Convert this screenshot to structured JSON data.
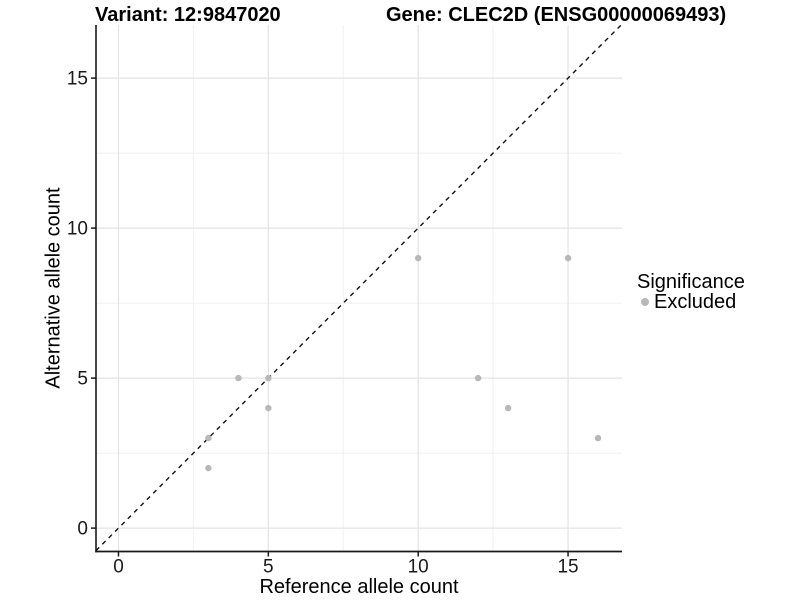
{
  "chart_data": {
    "type": "scatter",
    "title_left": "Variant: 12:9847020",
    "title_right": "Gene: CLEC2D (ENSG00000069493)",
    "xlabel": "Reference allele count",
    "ylabel": "Alternative allele count",
    "xlim": [
      -0.75,
      16.8
    ],
    "ylim": [
      -0.78,
      16.77
    ],
    "x_ticks": [
      0,
      5,
      10,
      15
    ],
    "y_ticks": [
      0,
      5,
      10,
      15
    ],
    "x_minor_ticks": [
      2.5,
      7.5,
      12.5
    ],
    "y_minor_ticks": [
      2.5,
      7.5,
      12.5
    ],
    "grid": true,
    "identity_line": {
      "slope": 1,
      "intercept": 0,
      "linetype": "dashed"
    },
    "series": [
      {
        "name": "Excluded",
        "color": "#b8b8b8",
        "points": [
          [
            3,
            2
          ],
          [
            3,
            3
          ],
          [
            4,
            5
          ],
          [
            5,
            4
          ],
          [
            5,
            5
          ],
          [
            10,
            9
          ],
          [
            12,
            5
          ],
          [
            13,
            4
          ],
          [
            15,
            9
          ],
          [
            16,
            3
          ]
        ]
      }
    ],
    "legend": {
      "title": "Significance",
      "position": "right",
      "items": [
        {
          "label": "Excluded",
          "color": "#b8b8b8"
        }
      ]
    },
    "colors": {
      "background": "#ffffff",
      "grid_major": "#e3e3e3",
      "grid_minor": "#f0f0f0",
      "axis": "#1a1a1a",
      "tick_label": "#1a1a1a",
      "identity_line": "#111111",
      "point": "#b8b8b8"
    }
  }
}
